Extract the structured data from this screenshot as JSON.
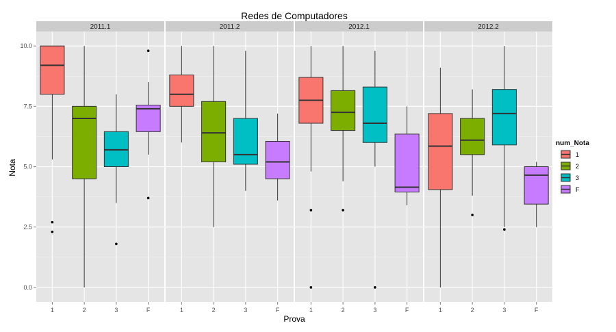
{
  "chart_data": {
    "type": "boxplot",
    "title": "Redes de Computadores",
    "xlabel": "Prova",
    "ylabel": "Nota",
    "ylim": [
      -0.6,
      10.6
    ],
    "yticks": [
      0,
      2.5,
      5,
      7.5,
      10
    ],
    "ytick_labels": [
      "0.0",
      "2.5",
      "5.0",
      "7.5",
      "10.0"
    ],
    "categories": [
      "1",
      "2",
      "3",
      "F"
    ],
    "legend": {
      "title": "num_Nota",
      "placement": "right",
      "entries": [
        {
          "label": "1",
          "color": "#F8766D"
        },
        {
          "label": "2",
          "color": "#7CAE00"
        },
        {
          "label": "3",
          "color": "#00BFC4"
        },
        {
          "label": "F",
          "color": "#C77CFF"
        }
      ]
    },
    "panels": [
      {
        "label": "2011.1",
        "boxes": [
          {
            "category": "1",
            "lower": 5.3,
            "q1": 8.0,
            "median": 9.2,
            "q3": 10.0,
            "upper": 10.0,
            "outliers": [
              2.7,
              2.3
            ]
          },
          {
            "category": "2",
            "lower": 0.0,
            "q1": 4.5,
            "median": 7.0,
            "q3": 7.5,
            "upper": 10.0,
            "outliers": []
          },
          {
            "category": "3",
            "lower": 3.5,
            "q1": 5.0,
            "median": 5.7,
            "q3": 6.45,
            "upper": 8.0,
            "outliers": [
              1.8
            ]
          },
          {
            "category": "F",
            "lower": 5.5,
            "q1": 6.45,
            "median": 7.4,
            "q3": 7.55,
            "upper": 8.5,
            "outliers": [
              9.8,
              3.7
            ]
          }
        ]
      },
      {
        "label": "2011.2",
        "boxes": [
          {
            "category": "1",
            "lower": 6.0,
            "q1": 7.5,
            "median": 8.0,
            "q3": 8.8,
            "upper": 10.0,
            "outliers": []
          },
          {
            "category": "2",
            "lower": 2.5,
            "q1": 5.2,
            "median": 6.4,
            "q3": 7.7,
            "upper": 10.0,
            "outliers": []
          },
          {
            "category": "3",
            "lower": 4.0,
            "q1": 5.1,
            "median": 5.5,
            "q3": 7.0,
            "upper": 9.8,
            "outliers": []
          },
          {
            "category": "F",
            "lower": 3.6,
            "q1": 4.5,
            "median": 5.2,
            "q3": 6.05,
            "upper": 7.2,
            "outliers": []
          }
        ]
      },
      {
        "label": "2012.1",
        "boxes": [
          {
            "category": "1",
            "lower": 4.8,
            "q1": 6.8,
            "median": 7.75,
            "q3": 8.7,
            "upper": 10.0,
            "outliers": [
              3.2,
              0.0
            ]
          },
          {
            "category": "2",
            "lower": 4.4,
            "q1": 6.5,
            "median": 7.25,
            "q3": 8.15,
            "upper": 10.0,
            "outliers": [
              3.2
            ]
          },
          {
            "category": "3",
            "lower": 5.0,
            "q1": 6.0,
            "median": 6.8,
            "q3": 8.3,
            "upper": 9.8,
            "outliers": [
              0.0
            ]
          },
          {
            "category": "F",
            "lower": 3.4,
            "q1": 3.95,
            "median": 4.15,
            "q3": 6.35,
            "upper": 7.5,
            "outliers": []
          }
        ]
      },
      {
        "label": "2012.2",
        "boxes": [
          {
            "category": "1",
            "lower": 0.0,
            "q1": 4.05,
            "median": 5.85,
            "q3": 7.2,
            "upper": 9.1,
            "outliers": []
          },
          {
            "category": "2",
            "lower": 3.8,
            "q1": 5.5,
            "median": 6.1,
            "q3": 7.0,
            "upper": 8.2,
            "outliers": [
              3.0
            ]
          },
          {
            "category": "3",
            "lower": 2.5,
            "q1": 5.9,
            "median": 7.2,
            "q3": 8.2,
            "upper": 10.0,
            "outliers": [
              2.4
            ]
          },
          {
            "category": "F",
            "lower": 2.5,
            "q1": 3.45,
            "median": 4.65,
            "q3": 5.0,
            "upper": 5.2,
            "outliers": []
          }
        ]
      }
    ]
  }
}
